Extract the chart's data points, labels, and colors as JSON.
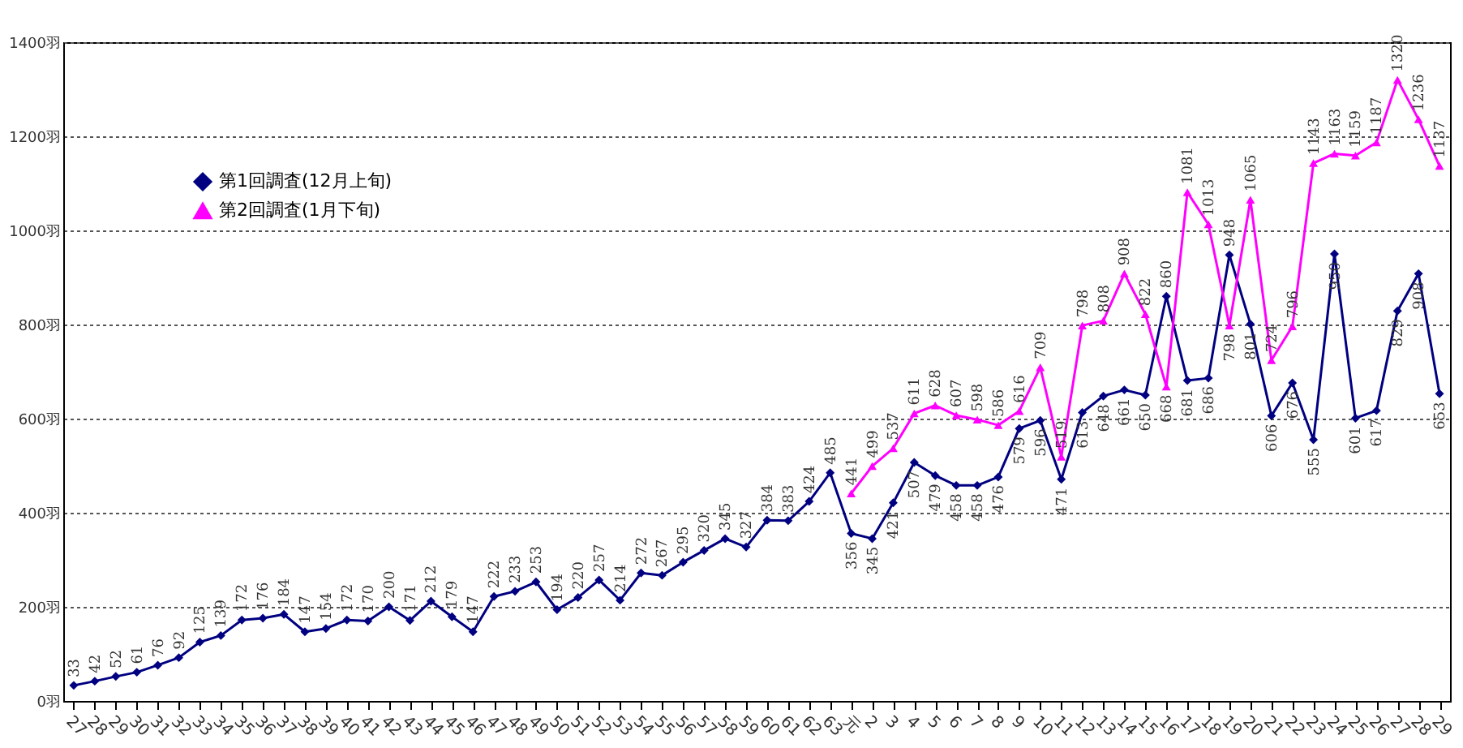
{
  "chart_data": {
    "type": "line",
    "categories": [
      "27",
      "28",
      "29",
      "30",
      "31",
      "32",
      "33",
      "34",
      "35",
      "36",
      "37",
      "38",
      "39",
      "40",
      "41",
      "42",
      "43",
      "44",
      "45",
      "46",
      "47",
      "48",
      "49",
      "50",
      "51",
      "52",
      "53",
      "54",
      "55",
      "56",
      "57",
      "58",
      "59",
      "60",
      "61",
      "62",
      "63",
      "元",
      "2",
      "3",
      "4",
      "5",
      "6",
      "7",
      "8",
      "9",
      "10",
      "11",
      "12",
      "13",
      "14",
      "15",
      "16",
      "17",
      "18",
      "19",
      "20",
      "21",
      "22",
      "23",
      "24",
      "25",
      "26",
      "27",
      "28",
      "29"
    ],
    "series": [
      {
        "name": "第1回調査(12月上旬)",
        "color": "#000080",
        "marker": "diamond",
        "values": [
          33,
          42,
          52,
          61,
          76,
          92,
          125,
          139,
          172,
          176,
          184,
          147,
          154,
          172,
          170,
          200,
          171,
          212,
          179,
          147,
          222,
          233,
          253,
          194,
          220,
          257,
          214,
          272,
          267,
          295,
          320,
          345,
          327,
          384,
          383,
          424,
          485,
          356,
          345,
          421,
          507,
          479,
          458,
          458,
          476,
          579,
          596,
          471,
          613,
          648,
          661,
          650,
          860,
          681,
          686,
          948,
          801,
          606,
          676,
          555,
          950,
          601,
          617,
          829,
          908,
          653
        ]
      },
      {
        "name": "第2回調査(1月下旬)",
        "color": "#ff00ff",
        "marker": "triangle",
        "values": [
          null,
          null,
          null,
          null,
          null,
          null,
          null,
          null,
          null,
          null,
          null,
          null,
          null,
          null,
          null,
          null,
          null,
          null,
          null,
          null,
          null,
          null,
          null,
          null,
          null,
          null,
          null,
          null,
          null,
          null,
          null,
          null,
          null,
          null,
          null,
          null,
          null,
          441,
          499,
          537,
          611,
          628,
          607,
          598,
          586,
          616,
          709,
          519,
          798,
          808,
          908,
          822,
          668,
          1081,
          1013,
          798,
          1065,
          724,
          796,
          1143,
          1163,
          1159,
          1187,
          1320,
          1236,
          1137
        ]
      }
    ],
    "ylim": [
      0,
      1400
    ],
    "yticks": [
      {
        "value": 0,
        "label": "0羽"
      },
      {
        "value": 200,
        "label": "200羽"
      },
      {
        "value": 400,
        "label": "400羽"
      },
      {
        "value": 600,
        "label": "600羽"
      },
      {
        "value": 800,
        "label": "800羽"
      },
      {
        "value": 1000,
        "label": "1000羽"
      },
      {
        "value": 1200,
        "label": "1200羽"
      },
      {
        "value": 1400,
        "label": "1400羽"
      }
    ],
    "grid": "y",
    "legend": "top left",
    "data_labels": true,
    "line_style": "solid"
  }
}
